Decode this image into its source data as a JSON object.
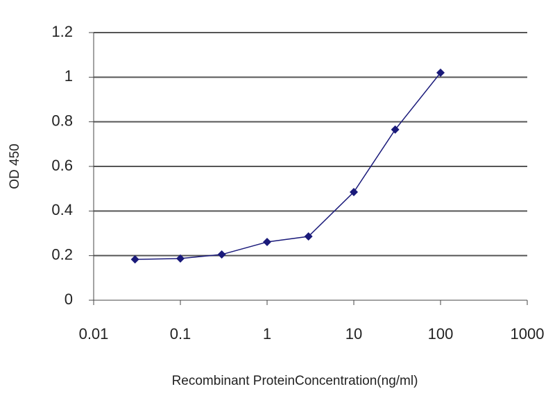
{
  "chart_data": {
    "type": "line",
    "x": [
      0.03,
      0.1,
      0.3,
      1,
      3,
      10,
      30,
      100
    ],
    "values": [
      0.183,
      0.187,
      0.205,
      0.261,
      0.286,
      0.485,
      0.765,
      1.02
    ],
    "color": "#1a1a7a",
    "xlabel": "Recombinant ProteinConcentration(ng/ml)",
    "ylabel": "OD 450",
    "xscale": "log",
    "xlim": [
      0.01,
      1000
    ],
    "xticks": [
      0.01,
      0.1,
      1,
      10,
      100,
      1000
    ],
    "ylim": [
      0,
      1.2
    ],
    "yticks": [
      0,
      0.2,
      0.4,
      0.6,
      0.8,
      1,
      1.2
    ],
    "grid": true
  }
}
